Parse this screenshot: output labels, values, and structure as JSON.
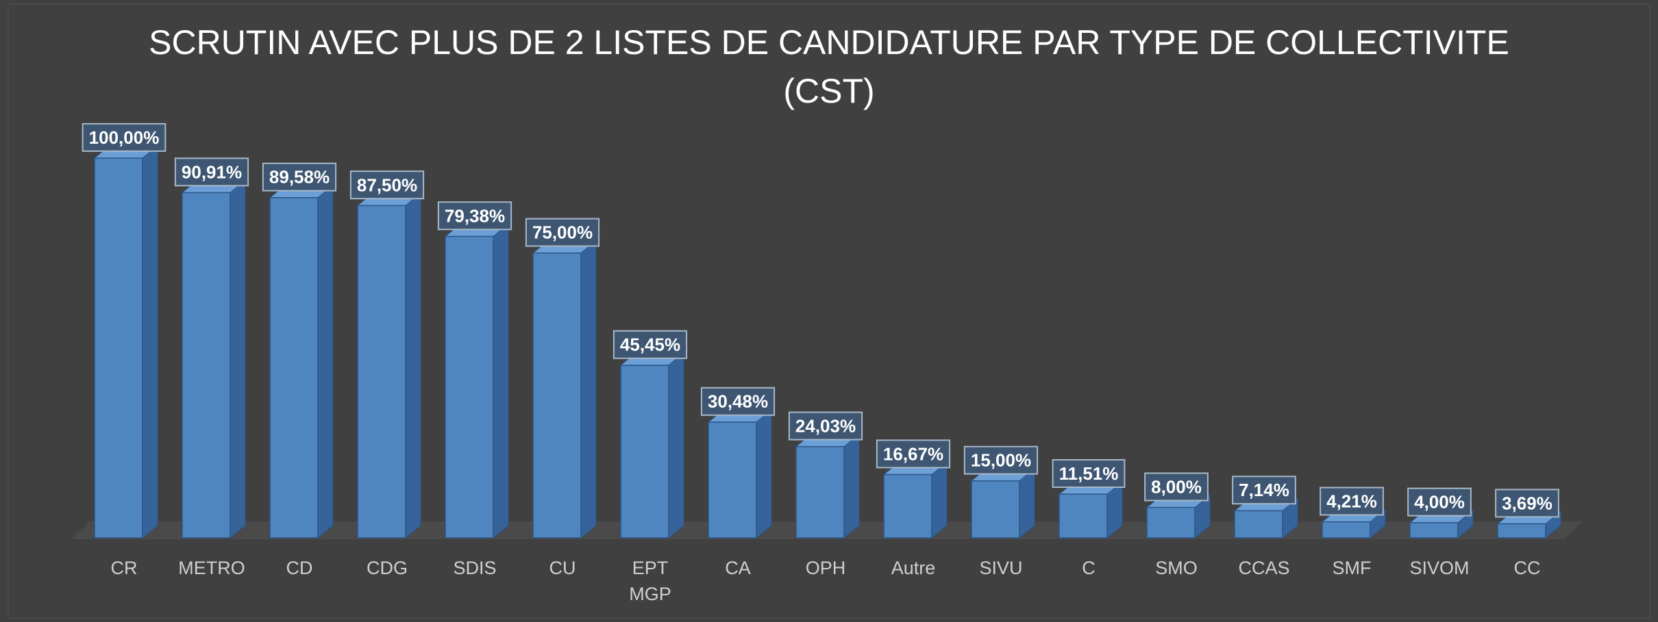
{
  "chart_data": {
    "type": "bar3d",
    "title": "SCRUTIN AVEC PLUS DE 2 LISTES DE CANDIDATURE PAR TYPE DE COLLECTIVITE",
    "subtitle": "(CST)",
    "categories": [
      "CR",
      "METRO",
      "CD",
      "CDG",
      "SDIS",
      "CU",
      "EPT MGP",
      "CA",
      "OPH",
      "Autre",
      "SIVU",
      "C",
      "SMO",
      "CCAS",
      "SMF",
      "SIVOM",
      "CC"
    ],
    "values": [
      100.0,
      90.91,
      89.58,
      87.5,
      79.38,
      75.0,
      45.45,
      30.48,
      24.03,
      16.67,
      15.0,
      11.51,
      8.0,
      7.14,
      4.21,
      4.0,
      3.69
    ],
    "value_labels": [
      "100,00%",
      "90,91%",
      "89,58%",
      "87,50%",
      "79,38%",
      "75,00%",
      "45,45%",
      "30,48%",
      "24,03%",
      "16,67%",
      "15,00%",
      "11,51%",
      "8,00%",
      "7,14%",
      "4,21%",
      "4,00%",
      "3,69%"
    ],
    "color": "#4f86c0"
  }
}
